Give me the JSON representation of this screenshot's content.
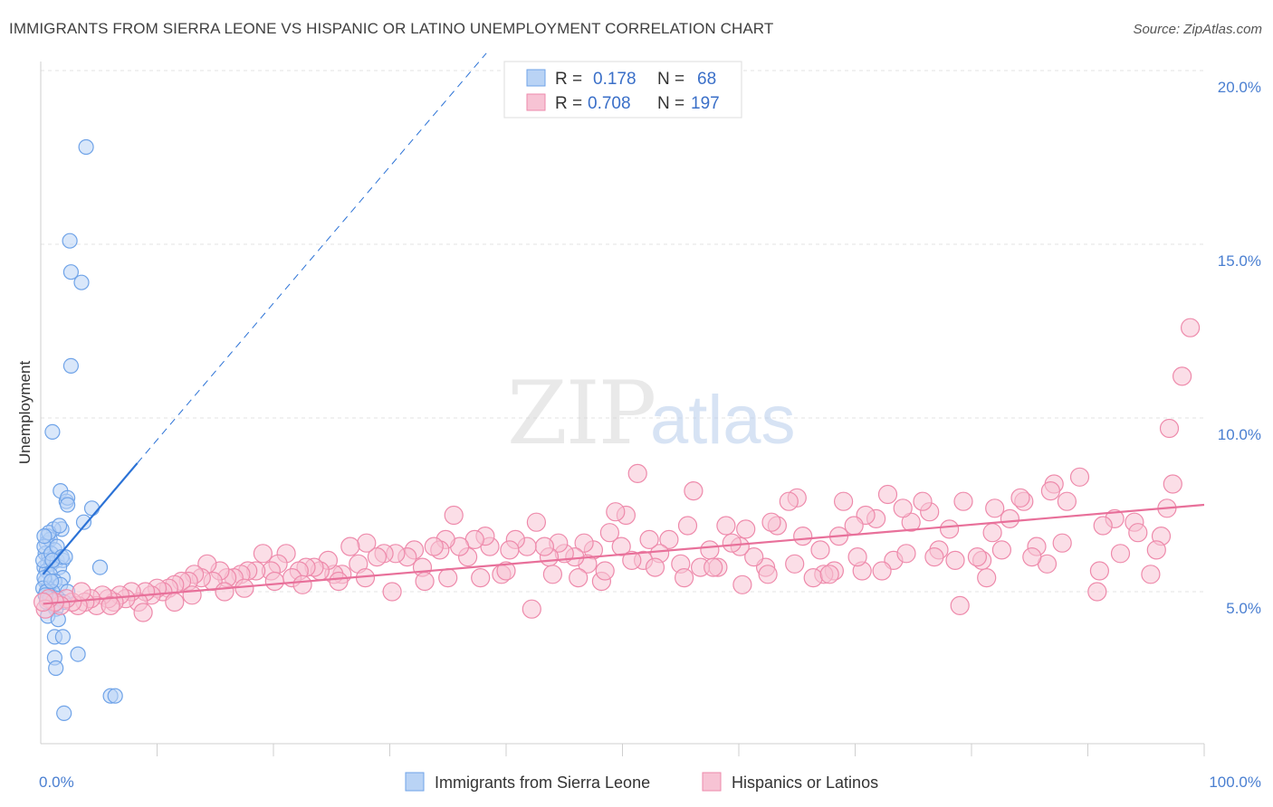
{
  "title": "IMMIGRANTS FROM SIERRA LEONE VS HISPANIC OR LATINO UNEMPLOYMENT CORRELATION CHART",
  "source": "Source: ZipAtlas.com",
  "watermark": {
    "zip": "ZIP",
    "atlas": "atlas"
  },
  "legend_top": [
    {
      "r_label": "R =",
      "r_value": "0.178",
      "n_label": "N =",
      "n_value": "68"
    },
    {
      "r_label": "R =",
      "r_value": "0.708",
      "n_label": "N =",
      "n_value": "197"
    }
  ],
  "chart_data": {
    "type": "scatter",
    "title": "IMMIGRANTS FROM SIERRA LEONE VS HISPANIC OR LATINO UNEMPLOYMENT CORRELATION CHART",
    "xlabel": "",
    "ylabel": "Unemployment",
    "xlim": [
      0,
      100
    ],
    "ylim": [
      0,
      21
    ],
    "x_tick_labels": [
      "0.0%",
      "100.0%"
    ],
    "y_ticks": [
      5,
      10,
      15,
      20
    ],
    "y_tick_labels": [
      "5.0%",
      "10.0%",
      "15.0%",
      "20.0%"
    ],
    "grid": true,
    "legend_position": "top-center",
    "series": [
      {
        "name": "Immigrants from Sierra Leone",
        "color": "#6fa3e8",
        "fill": "#b9d3f5",
        "trend_color": "#2b72d6",
        "trend": {
          "x0": 0.2,
          "y0": 5.5,
          "x1": 8.3,
          "y1": 8.7,
          "dash_to_x": 38.3,
          "dash_to_y": 20.5
        },
        "points": [
          [
            3.9,
            17.8
          ],
          [
            2.5,
            15.1
          ],
          [
            2.6,
            14.2
          ],
          [
            3.5,
            13.9
          ],
          [
            2.6,
            11.5
          ],
          [
            1.0,
            9.6
          ],
          [
            1.7,
            7.9
          ],
          [
            2.2,
            7.6
          ],
          [
            2.3,
            7.7
          ],
          [
            2.3,
            7.5
          ],
          [
            4.4,
            7.4
          ],
          [
            3.7,
            7.0
          ],
          [
            1.8,
            6.8
          ],
          [
            1.1,
            6.8
          ],
          [
            0.6,
            6.6
          ],
          [
            0.5,
            6.4
          ],
          [
            0.8,
            6.5
          ],
          [
            1.2,
            6.2
          ],
          [
            0.4,
            6.1
          ],
          [
            0.7,
            6.0
          ],
          [
            1.4,
            5.9
          ],
          [
            1.9,
            5.9
          ],
          [
            0.6,
            5.8
          ],
          [
            0.3,
            5.7
          ],
          [
            0.9,
            5.8
          ],
          [
            1.6,
            5.7
          ],
          [
            5.1,
            5.7
          ],
          [
            0.5,
            5.6
          ],
          [
            0.8,
            5.5
          ],
          [
            1.9,
            5.4
          ],
          [
            0.4,
            5.3
          ],
          [
            1.2,
            5.3
          ],
          [
            1.7,
            5.2
          ],
          [
            0.6,
            5.1
          ],
          [
            1.0,
            5.0
          ],
          [
            2.3,
            5.0
          ],
          [
            0.7,
            4.9
          ],
          [
            1.5,
            4.8
          ],
          [
            0.5,
            4.7
          ],
          [
            1.1,
            4.6
          ],
          [
            2.0,
            4.7
          ],
          [
            1.3,
            4.5
          ],
          [
            0.6,
            4.3
          ],
          [
            1.5,
            4.2
          ],
          [
            1.2,
            3.7
          ],
          [
            1.9,
            3.7
          ],
          [
            3.2,
            3.2
          ],
          [
            1.2,
            3.1
          ],
          [
            1.3,
            2.8
          ],
          [
            6.0,
            2.0
          ],
          [
            6.4,
            2.0
          ],
          [
            2.0,
            1.5
          ],
          [
            0.3,
            6.3
          ],
          [
            0.2,
            5.9
          ],
          [
            0.3,
            5.4
          ],
          [
            0.2,
            5.1
          ],
          [
            0.9,
            6.1
          ],
          [
            1.4,
            6.3
          ],
          [
            0.5,
            5.0
          ],
          [
            1.8,
            6.0
          ],
          [
            0.8,
            4.8
          ],
          [
            0.4,
            4.9
          ],
          [
            1.0,
            5.9
          ],
          [
            2.1,
            6.0
          ],
          [
            0.7,
            6.7
          ],
          [
            0.3,
            6.6
          ],
          [
            1.6,
            6.9
          ],
          [
            0.9,
            5.3
          ]
        ]
      },
      {
        "name": "Hispanics or Latinos",
        "color": "#ee8aab",
        "fill": "#f7c3d4",
        "trend_color": "#e8709a",
        "trend": {
          "x0": 0.2,
          "y0": 4.65,
          "x1": 100,
          "y1": 7.5
        },
        "points": [
          [
            98.8,
            12.6
          ],
          [
            98.1,
            11.2
          ],
          [
            97.0,
            9.7
          ],
          [
            97.3,
            8.1
          ],
          [
            96.8,
            7.4
          ],
          [
            96.3,
            6.6
          ],
          [
            95.9,
            6.2
          ],
          [
            95.4,
            5.5
          ],
          [
            94.0,
            7.0
          ],
          [
            94.3,
            6.7
          ],
          [
            92.3,
            7.1
          ],
          [
            92.8,
            6.1
          ],
          [
            91.3,
            6.9
          ],
          [
            91.0,
            5.6
          ],
          [
            90.8,
            5.0
          ],
          [
            89.3,
            8.3
          ],
          [
            88.2,
            7.6
          ],
          [
            87.8,
            6.4
          ],
          [
            87.1,
            8.1
          ],
          [
            86.8,
            7.9
          ],
          [
            86.5,
            5.8
          ],
          [
            85.6,
            6.3
          ],
          [
            84.5,
            7.6
          ],
          [
            84.2,
            7.7
          ],
          [
            83.3,
            7.1
          ],
          [
            82.0,
            7.4
          ],
          [
            81.3,
            5.4
          ],
          [
            81.8,
            6.7
          ],
          [
            80.9,
            5.9
          ],
          [
            79.0,
            4.6
          ],
          [
            79.3,
            7.6
          ],
          [
            78.1,
            6.8
          ],
          [
            77.2,
            6.2
          ],
          [
            76.4,
            7.3
          ],
          [
            75.8,
            7.6
          ],
          [
            74.8,
            7.0
          ],
          [
            74.1,
            7.4
          ],
          [
            73.3,
            5.9
          ],
          [
            72.8,
            7.8
          ],
          [
            71.8,
            7.1
          ],
          [
            70.9,
            7.2
          ],
          [
            70.6,
            5.6
          ],
          [
            69.9,
            6.9
          ],
          [
            69.0,
            7.6
          ],
          [
            68.6,
            6.6
          ],
          [
            68.2,
            5.6
          ],
          [
            67.3,
            5.5
          ],
          [
            67.0,
            6.2
          ],
          [
            66.4,
            5.4
          ],
          [
            65.5,
            6.6
          ],
          [
            65.0,
            7.7
          ],
          [
            64.3,
            7.6
          ],
          [
            63.3,
            6.9
          ],
          [
            62.8,
            7.0
          ],
          [
            62.3,
            5.7
          ],
          [
            61.3,
            6.0
          ],
          [
            60.6,
            6.8
          ],
          [
            60.1,
            6.3
          ],
          [
            59.4,
            6.4
          ],
          [
            58.9,
            6.9
          ],
          [
            58.2,
            5.7
          ],
          [
            57.5,
            6.2
          ],
          [
            56.7,
            5.7
          ],
          [
            56.1,
            7.9
          ],
          [
            55.6,
            6.9
          ],
          [
            55.0,
            5.8
          ],
          [
            54.0,
            6.5
          ],
          [
            53.2,
            6.1
          ],
          [
            52.3,
            6.5
          ],
          [
            51.8,
            5.9
          ],
          [
            51.3,
            8.4
          ],
          [
            50.3,
            7.2
          ],
          [
            49.9,
            6.3
          ],
          [
            49.4,
            7.3
          ],
          [
            48.9,
            6.7
          ],
          [
            48.2,
            5.3
          ],
          [
            47.5,
            6.2
          ],
          [
            47.0,
            5.8
          ],
          [
            46.7,
            6.4
          ],
          [
            45.9,
            6.0
          ],
          [
            45.0,
            6.1
          ],
          [
            44.5,
            6.4
          ],
          [
            43.7,
            6.0
          ],
          [
            43.3,
            6.3
          ],
          [
            42.6,
            7.0
          ],
          [
            42.2,
            4.5
          ],
          [
            41.8,
            6.3
          ],
          [
            40.8,
            6.5
          ],
          [
            40.3,
            6.2
          ],
          [
            39.6,
            5.5
          ],
          [
            38.6,
            6.3
          ],
          [
            38.2,
            6.6
          ],
          [
            37.3,
            6.5
          ],
          [
            36.7,
            6.0
          ],
          [
            36.0,
            6.3
          ],
          [
            35.5,
            7.2
          ],
          [
            34.8,
            6.5
          ],
          [
            34.3,
            6.2
          ],
          [
            33.8,
            6.3
          ],
          [
            32.8,
            5.7
          ],
          [
            32.1,
            6.2
          ],
          [
            31.5,
            6.0
          ],
          [
            30.5,
            6.1
          ],
          [
            29.5,
            6.1
          ],
          [
            28.9,
            6.0
          ],
          [
            28.0,
            6.4
          ],
          [
            27.3,
            5.8
          ],
          [
            26.6,
            6.3
          ],
          [
            25.9,
            5.5
          ],
          [
            25.2,
            5.5
          ],
          [
            24.7,
            5.9
          ],
          [
            24.0,
            5.6
          ],
          [
            23.5,
            5.7
          ],
          [
            22.8,
            5.7
          ],
          [
            22.2,
            5.6
          ],
          [
            21.6,
            5.4
          ],
          [
            21.1,
            6.1
          ],
          [
            20.4,
            5.8
          ],
          [
            19.8,
            5.6
          ],
          [
            19.1,
            6.1
          ],
          [
            18.5,
            5.6
          ],
          [
            17.8,
            5.6
          ],
          [
            17.2,
            5.5
          ],
          [
            16.6,
            5.4
          ],
          [
            16.0,
            5.4
          ],
          [
            15.4,
            5.6
          ],
          [
            14.8,
            5.3
          ],
          [
            14.3,
            5.8
          ],
          [
            13.8,
            5.4
          ],
          [
            13.2,
            5.5
          ],
          [
            12.7,
            5.3
          ],
          [
            12.1,
            5.3
          ],
          [
            11.5,
            5.2
          ],
          [
            11.0,
            5.1
          ],
          [
            10.5,
            5.0
          ],
          [
            10.0,
            5.1
          ],
          [
            9.5,
            4.9
          ],
          [
            9.0,
            5.0
          ],
          [
            8.4,
            4.7
          ],
          [
            7.8,
            5.0
          ],
          [
            7.3,
            4.8
          ],
          [
            6.8,
            4.9
          ],
          [
            6.3,
            4.7
          ],
          [
            5.8,
            4.8
          ],
          [
            5.3,
            4.9
          ],
          [
            4.8,
            4.6
          ],
          [
            4.3,
            4.8
          ],
          [
            3.8,
            4.7
          ],
          [
            3.2,
            4.6
          ],
          [
            2.7,
            4.7
          ],
          [
            2.2,
            4.8
          ],
          [
            1.7,
            4.6
          ],
          [
            1.2,
            4.7
          ],
          [
            0.7,
            4.8
          ],
          [
            0.4,
            4.5
          ],
          [
            0.2,
            4.7
          ],
          [
            3.5,
            5.0
          ],
          [
            6.0,
            4.6
          ],
          [
            8.8,
            4.4
          ],
          [
            11.5,
            4.7
          ],
          [
            13.0,
            4.9
          ],
          [
            15.8,
            5.0
          ],
          [
            17.5,
            5.1
          ],
          [
            20.1,
            5.3
          ],
          [
            22.5,
            5.2
          ],
          [
            25.6,
            5.3
          ],
          [
            27.9,
            5.4
          ],
          [
            30.2,
            5.0
          ],
          [
            33.0,
            5.3
          ],
          [
            35.0,
            5.4
          ],
          [
            37.8,
            5.4
          ],
          [
            40.0,
            5.6
          ],
          [
            44.0,
            5.5
          ],
          [
            46.2,
            5.4
          ],
          [
            48.5,
            5.6
          ],
          [
            50.8,
            5.9
          ],
          [
            52.8,
            5.7
          ],
          [
            55.3,
            5.4
          ],
          [
            57.8,
            5.7
          ],
          [
            60.3,
            5.2
          ],
          [
            62.5,
            5.5
          ],
          [
            64.8,
            5.8
          ],
          [
            67.8,
            5.5
          ],
          [
            70.2,
            6.0
          ],
          [
            72.3,
            5.6
          ],
          [
            74.4,
            6.1
          ],
          [
            76.8,
            6.0
          ],
          [
            78.6,
            5.9
          ],
          [
            80.5,
            6.0
          ],
          [
            82.6,
            6.2
          ],
          [
            85.2,
            6.0
          ]
        ]
      }
    ]
  },
  "bottom_legend": [
    {
      "label": "Immigrants from Sierra Leone"
    },
    {
      "label": "Hispanics or Latinos"
    }
  ]
}
